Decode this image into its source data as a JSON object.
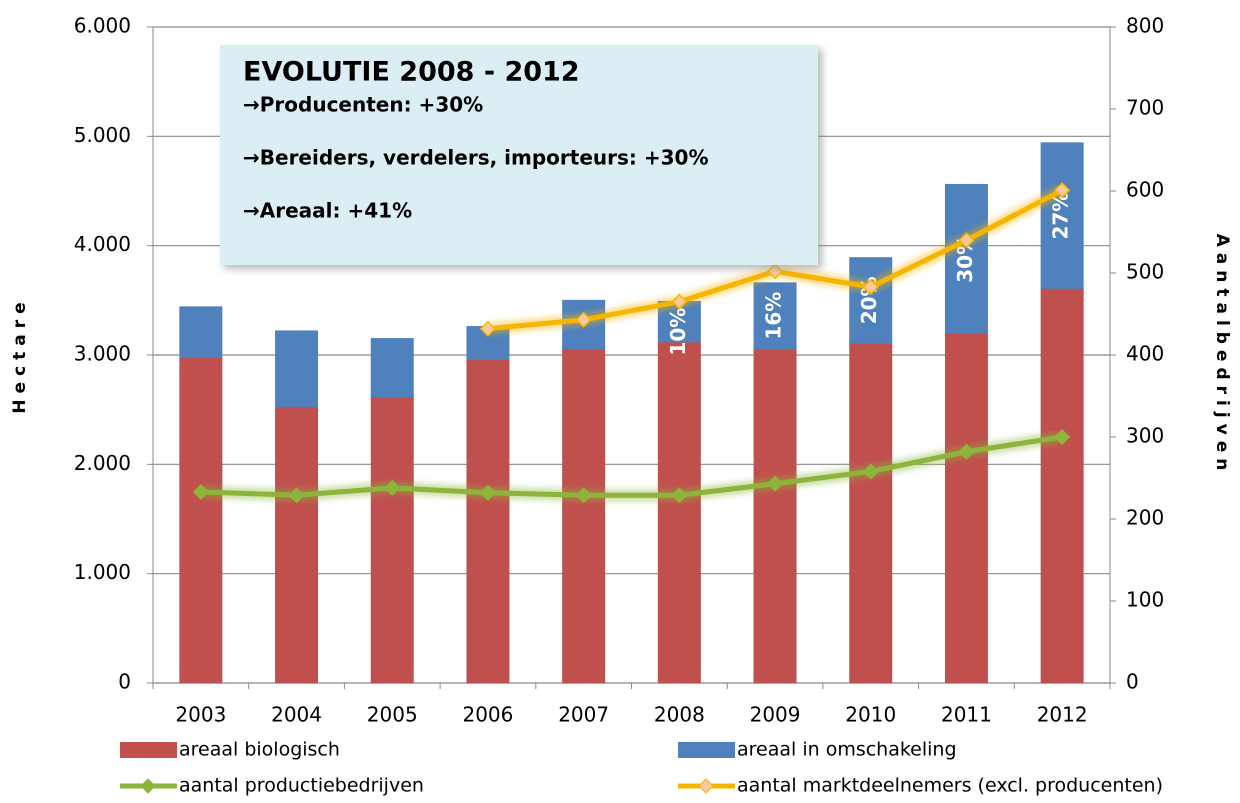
{
  "chart_data": {
    "type": "bar-line",
    "y_label": "Hectare",
    "y2_label": "Aantalbedrijven",
    "categories": [
      "2003",
      "2004",
      "2005",
      "2006",
      "2007",
      "2008",
      "2009",
      "2010",
      "2011",
      "2012"
    ],
    "series": [
      {
        "name": "areaal biologisch",
        "type": "bar",
        "color": "#c0504d",
        "values": [
          2980,
          2530,
          2620,
          2960,
          3060,
          3120,
          3060,
          3110,
          3200,
          3610
        ]
      },
      {
        "name": "areaal in omschakeling",
        "type": "bar",
        "color": "#4f81bd",
        "values": [
          460,
          690,
          530,
          300,
          440,
          370,
          600,
          780,
          1360,
          1330
        ],
        "bar_texts": [
          null,
          null,
          null,
          null,
          null,
          "10%",
          "16%",
          "20%",
          "30%",
          "27%"
        ]
      },
      {
        "name": "aantal productiebedrijven",
        "type": "line",
        "axis": "y2",
        "color": "#8db53c",
        "values": [
          233,
          229,
          238,
          232,
          229,
          229,
          243,
          258,
          282,
          300
        ]
      },
      {
        "name": "aantal marktdeelnemers (excl. producenten)",
        "type": "line",
        "axis": "y2",
        "color": "#f7b500",
        "values": [
          null,
          null,
          null,
          432,
          443,
          465,
          502,
          483,
          540,
          601
        ]
      }
    ],
    "ylim": [
      0,
      6000
    ],
    "yticks": [
      0,
      {
        "value": 1000,
        "label": "1.000"
      },
      {
        "value": 2000,
        "label": "2.000"
      },
      {
        "value": 3000,
        "label": "3.000"
      },
      {
        "value": 4000,
        "label": "4.000"
      },
      {
        "value": 5000,
        "label": "5.000"
      },
      {
        "value": 6000,
        "label": "6.000"
      }
    ],
    "y2lim": [
      0,
      800
    ],
    "y2ticks": [
      0,
      100,
      200,
      300,
      400,
      500,
      600,
      700,
      800
    ],
    "grid": true,
    "legend": "bottom",
    "info_box": {
      "title": "EVOLUTIE 2008 - 2012",
      "lines": [
        "→Producenten: +30%",
        "→Bereiders, verdelers, importeurs: +30%",
        "→Areaal: +41%"
      ]
    }
  }
}
